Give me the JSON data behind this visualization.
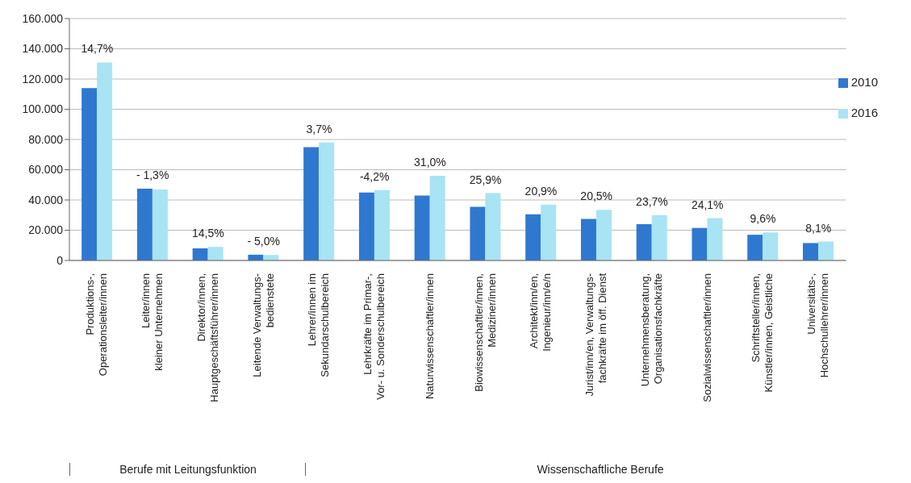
{
  "chart_data": {
    "type": "bar",
    "categories": [
      "Produktions-,\nOperationsleiter/innen",
      "Leiter/innen\nkleiner Unternehmen",
      "Direktor/innen,\nHauptgeschäftsführer/innen",
      "Leitende Verwaltungs-\nbedienstete",
      "Lehrer/innen im\nSekundarschulbereich",
      "Lehrkräfte im Primar-,\nVor- u. Sonderschulbereich",
      "Naturwissenschaftler/innen",
      "Biowissenschaftler/innen,\nMediziner/innen",
      "Architekt/inn/en,\nIngenieur/inn/e/n",
      "Jurist/inn/en, Verwaltungs-\nfachkräfte im öff. Dienst",
      "Unternehmensberatung,\nOrganisationsfachkräfte",
      "Sozialwissenschaftler/innen",
      "Schriftsteller/innen,\nKünstler/innen, Geistliche",
      "Universitäts-,\nHochschullehrer/innen"
    ],
    "series": [
      {
        "name": "2010",
        "color": "#2f78d0",
        "values": [
          114000,
          47500,
          8000,
          3800,
          75000,
          45000,
          43000,
          35500,
          30500,
          27500,
          24000,
          21500,
          17000,
          11500
        ]
      },
      {
        "name": "2016",
        "color": "#a8e4f4",
        "values": [
          131000,
          47000,
          9000,
          3600,
          78000,
          46500,
          56000,
          44500,
          37000,
          33500,
          30000,
          28000,
          18500,
          12500
        ]
      }
    ],
    "ylim": [
      0,
      160000
    ],
    "yticks": [
      {
        "value": 0,
        "label": "0"
      },
      {
        "value": 20000,
        "label": "20.000"
      },
      {
        "value": 40000,
        "label": "40.000"
      },
      {
        "value": 60000,
        "label": "60.000"
      },
      {
        "value": 80000,
        "label": "80.000"
      },
      {
        "value": 100000,
        "label": "100.000"
      },
      {
        "value": 120000,
        "label": "120.000"
      },
      {
        "value": 140000,
        "label": "140.000"
      },
      {
        "value": 160000,
        "label": "160.000"
      }
    ],
    "grid": "y",
    "legend": "top right",
    "annotations": [
      {
        "text": "14,7%",
        "x": "Produktions-,\nOperationsleiter/innen",
        "y": 131000
      },
      {
        "text": "- 1,3%",
        "x": "Leiter/innen\nkleiner Unternehmen",
        "y": 47500
      },
      {
        "text": "14,5%",
        "x": "Direktor/innen,\nHauptgeschäftsführer/innen",
        "y": 9000
      },
      {
        "text": "- 5,0%",
        "x": "Leitende Verwaltungs-\nbedienstete",
        "y": 3800
      },
      {
        "text": "3,7%",
        "x": "Lehrer/innen im\nSekundarschulbereich",
        "y": 78000
      },
      {
        "text": "-4,2%",
        "x": "Lehrkräfte im Primar-,\nVor- u. Sonderschulbereich",
        "y": 46500
      },
      {
        "text": "31,0%",
        "x": "Naturwissenschaftler/innen",
        "y": 56000
      },
      {
        "text": "25,9%",
        "x": "Biowissenschaftler/innen,\nMediziner/innen",
        "y": 44500
      },
      {
        "text": "20,9%",
        "x": "Architekt/inn/en,\nIngenieur/inn/e/n",
        "y": 37000
      },
      {
        "text": "20,5%",
        "x": "Jurist/inn/en, Verwaltungs-\nfachkräfte im öff. Dienst",
        "y": 33500
      },
      {
        "text": "23,7%",
        "x": "Unternehmensberatung,\nOrganisationsfachkräfte",
        "y": 30000
      },
      {
        "text": "24,1%",
        "x": "Sozialwissenschaftler/innen",
        "y": 28000
      },
      {
        "text": "9,6%",
        "x": "Schriftsteller/innen,\nKünstler/innen, Geistliche",
        "y": 18500
      },
      {
        "text": "8,1%",
        "x": "Universitäts-,\nHochschullehrer/innen",
        "y": 12500
      },
      "Berufe mit Leitungsfunktion",
      "Wissenschaftliche Berufe"
    ]
  }
}
